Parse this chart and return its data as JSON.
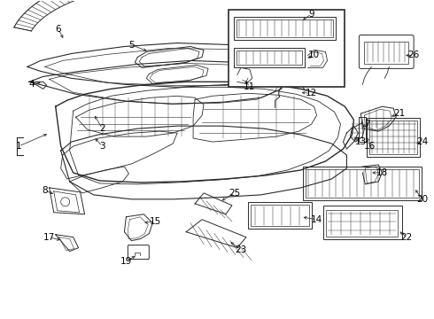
{
  "background_color": "#ffffff",
  "line_color": "#2a2a2a",
  "label_color": "#000000",
  "fig_width": 4.9,
  "fig_height": 3.6,
  "dpi": 100,
  "label_fontsize": 7.5
}
